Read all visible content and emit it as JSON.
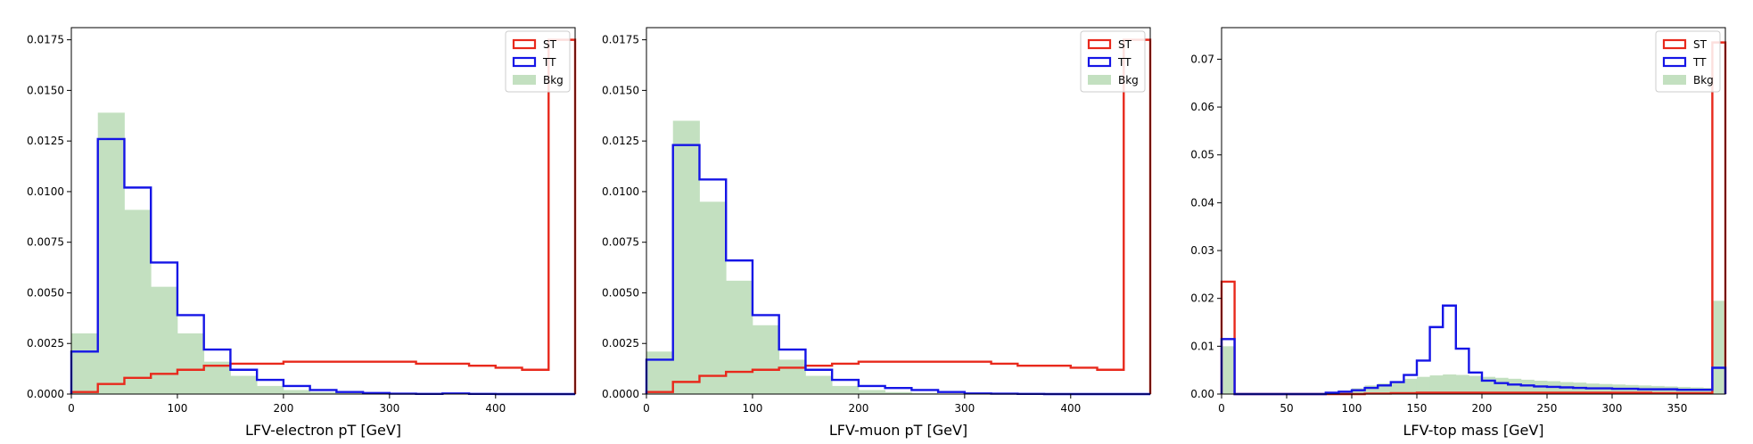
{
  "colors": {
    "st": "#e8291c",
    "tt": "#1515e6",
    "bkg": "#c3e0c0",
    "axis": "#000000"
  },
  "chart_data": [
    {
      "type": "histogram",
      "xlabel": "LFV-electron pT [GeV]",
      "ylabel": "",
      "xlim": [
        0,
        475
      ],
      "ylim": [
        0,
        0.0181
      ],
      "xticks": [
        "0",
        "100",
        "200",
        "300",
        "400"
      ],
      "xtick_values": [
        0,
        100,
        200,
        300,
        400
      ],
      "yticks": [
        "0.0000",
        "0.0025",
        "0.0050",
        "0.0075",
        "0.0100",
        "0.0125",
        "0.0150",
        "0.0175"
      ],
      "ytick_values": [
        0,
        0.0025,
        0.005,
        0.0075,
        0.01,
        0.0125,
        0.015,
        0.0175
      ],
      "bin_edges": [
        0,
        25,
        50,
        75,
        100,
        125,
        150,
        175,
        200,
        225,
        250,
        275,
        300,
        325,
        350,
        375,
        400,
        425,
        450,
        475
      ],
      "legend": [
        "ST",
        "TT",
        "Bkg"
      ],
      "legend_position": "top-right",
      "series": [
        {
          "name": "ST",
          "style": "step",
          "values": [
            0.0001,
            0.0005,
            0.0008,
            0.001,
            0.0012,
            0.0014,
            0.0015,
            0.0015,
            0.0016,
            0.0016,
            0.0016,
            0.0016,
            0.0016,
            0.0015,
            0.0015,
            0.0014,
            0.0013,
            0.0012,
            0.0175
          ]
        },
        {
          "name": "TT",
          "style": "step",
          "values": [
            0.0021,
            0.0126,
            0.0102,
            0.0065,
            0.0039,
            0.0022,
            0.0012,
            0.0007,
            0.0004,
            0.0002,
            0.0001,
            5e-05,
            2e-05,
            1e-05,
            3e-05,
            1e-05,
            0.0,
            0.0,
            0.0
          ]
        },
        {
          "name": "Bkg",
          "style": "filled",
          "values": [
            0.003,
            0.0139,
            0.0091,
            0.0053,
            0.003,
            0.0016,
            0.0009,
            0.0004,
            0.0002,
            0.0001,
            5e-05,
            2e-05,
            1e-05,
            0.0,
            0.0,
            0.0,
            0.0,
            0.0,
            0.0
          ]
        }
      ]
    },
    {
      "type": "histogram",
      "xlabel": "LFV-muon pT [GeV]",
      "ylabel": "",
      "xlim": [
        0,
        475
      ],
      "ylim": [
        0,
        0.0181
      ],
      "xticks": [
        "0",
        "100",
        "200",
        "300",
        "400"
      ],
      "xtick_values": [
        0,
        100,
        200,
        300,
        400
      ],
      "yticks": [
        "0.0000",
        "0.0025",
        "0.0050",
        "0.0075",
        "0.0100",
        "0.0125",
        "0.0150",
        "0.0175"
      ],
      "ytick_values": [
        0,
        0.0025,
        0.005,
        0.0075,
        0.01,
        0.0125,
        0.015,
        0.0175
      ],
      "bin_edges": [
        0,
        25,
        50,
        75,
        100,
        125,
        150,
        175,
        200,
        225,
        250,
        275,
        300,
        325,
        350,
        375,
        400,
        425,
        450,
        475
      ],
      "legend": [
        "ST",
        "TT",
        "Bkg"
      ],
      "legend_position": "top-right",
      "series": [
        {
          "name": "ST",
          "style": "step",
          "values": [
            0.0001,
            0.0006,
            0.0009,
            0.0011,
            0.0012,
            0.0013,
            0.0014,
            0.0015,
            0.0016,
            0.0016,
            0.0016,
            0.0016,
            0.0016,
            0.0015,
            0.0014,
            0.0014,
            0.0013,
            0.0012,
            0.0175
          ]
        },
        {
          "name": "TT",
          "style": "step",
          "values": [
            0.0017,
            0.0123,
            0.0106,
            0.0066,
            0.0039,
            0.0022,
            0.0012,
            0.0007,
            0.0004,
            0.0003,
            0.0002,
            0.0001,
            3e-05,
            2e-05,
            1e-05,
            0.0,
            0.0,
            0.0,
            0.0
          ]
        },
        {
          "name": "Bkg",
          "style": "filled",
          "values": [
            0.0021,
            0.0135,
            0.0095,
            0.0056,
            0.0034,
            0.0017,
            0.0009,
            0.0004,
            0.0002,
            0.0001,
            5e-05,
            2e-05,
            1e-05,
            0.0,
            0.0,
            0.0,
            0.0,
            0.0,
            0.0
          ]
        }
      ]
    },
    {
      "type": "histogram",
      "xlabel": "LFV-top mass [GeV]",
      "ylabel": "",
      "xlim": [
        0,
        387
      ],
      "ylim": [
        0,
        0.0766
      ],
      "xticks": [
        "0",
        "50",
        "100",
        "150",
        "200",
        "250",
        "300",
        "350"
      ],
      "xtick_values": [
        0,
        50,
        100,
        150,
        200,
        250,
        300,
        350
      ],
      "yticks": [
        "0.00",
        "0.01",
        "0.02",
        "0.03",
        "0.04",
        "0.05",
        "0.06",
        "0.07"
      ],
      "ytick_values": [
        0,
        0.01,
        0.02,
        0.03,
        0.04,
        0.05,
        0.06,
        0.07
      ],
      "bin_edges": [
        0,
        10,
        20,
        30,
        40,
        50,
        60,
        70,
        80,
        90,
        100,
        110,
        120,
        130,
        140,
        150,
        160,
        170,
        180,
        190,
        200,
        210,
        220,
        230,
        240,
        250,
        260,
        270,
        280,
        290,
        300,
        310,
        320,
        330,
        340,
        350,
        360,
        370,
        377,
        387
      ],
      "legend": [
        "ST",
        "TT",
        "Bkg"
      ],
      "legend_position": "top-right",
      "series": [
        {
          "name": "ST",
          "style": "step",
          "values": [
            0.0235,
            0.0,
            0.0,
            0.0,
            0.0,
            0.0,
            0.0,
            0.0,
            0.0,
            0.0,
            0.0,
            0.0001,
            0.0001,
            0.0002,
            0.0002,
            0.0003,
            0.0003,
            0.0003,
            0.0003,
            0.0003,
            0.0003,
            0.0003,
            0.0003,
            0.0003,
            0.0003,
            0.0003,
            0.0003,
            0.0003,
            0.0003,
            0.0003,
            0.0003,
            0.0003,
            0.0003,
            0.0002,
            0.0002,
            0.0002,
            0.0002,
            0.0002,
            0.0735
          ]
        },
        {
          "name": "TT",
          "style": "step",
          "values": [
            0.0115,
            0.0,
            0.0,
            0.0,
            0.0,
            0.0,
            0.0,
            0.0,
            0.0003,
            0.0005,
            0.0008,
            0.0013,
            0.0018,
            0.0025,
            0.004,
            0.007,
            0.014,
            0.0185,
            0.0095,
            0.0045,
            0.0028,
            0.0023,
            0.002,
            0.0018,
            0.0016,
            0.0015,
            0.0014,
            0.0013,
            0.0012,
            0.0012,
            0.0011,
            0.0011,
            0.001,
            0.001,
            0.001,
            0.0009,
            0.0009,
            0.0009,
            0.0055
          ]
        },
        {
          "name": "Bkg",
          "style": "filled",
          "values": [
            0.01,
            0.0,
            0.0,
            0.0,
            0.0,
            0.0,
            0.0,
            0.0,
            0.0003,
            0.0006,
            0.0012,
            0.0018,
            0.0022,
            0.0027,
            0.0032,
            0.0036,
            0.0039,
            0.0041,
            0.004,
            0.0038,
            0.0036,
            0.0034,
            0.0032,
            0.003,
            0.0028,
            0.0027,
            0.0025,
            0.0024,
            0.0022,
            0.0021,
            0.002,
            0.0019,
            0.0018,
            0.0017,
            0.0016,
            0.0015,
            0.0014,
            0.0013,
            0.0195
          ]
        }
      ]
    }
  ]
}
